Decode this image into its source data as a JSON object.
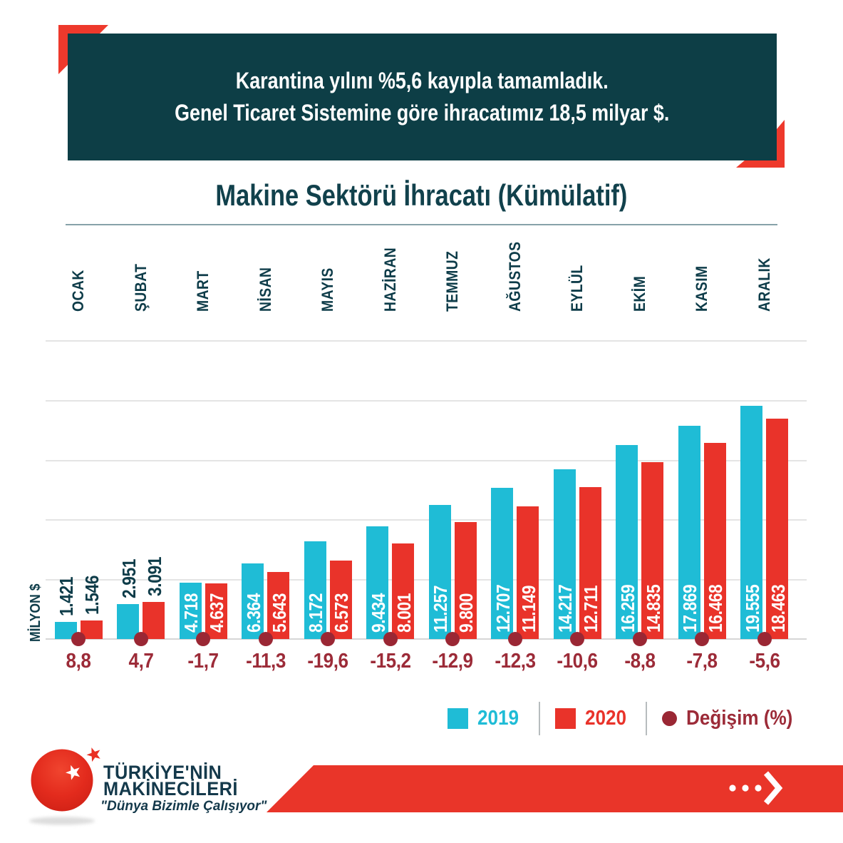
{
  "banner": {
    "line1": "Karantina yılını %5,6 kayıpla tamamladık.",
    "line2": "Genel Ticaret Sistemine göre ihracatımız 18,5 milyar $."
  },
  "chart_data": {
    "type": "bar",
    "title": "Makine Sektörü İhracatı (Kümülatif)",
    "ylabel": "MİLYON $",
    "categories": [
      "OCAK",
      "ŞUBAT",
      "MART",
      "NİSAN",
      "MAYIS",
      "HAZİRAN",
      "TEMMUZ",
      "AĞUSTOS",
      "EYLÜL",
      "EKİM",
      "KASIM",
      "ARALIK"
    ],
    "series": [
      {
        "name": "2019",
        "values": [
          1421,
          2951,
          4718,
          6364,
          8172,
          9434,
          11257,
          12707,
          14217,
          16259,
          17869,
          19555
        ]
      },
      {
        "name": "2020",
        "values": [
          1546,
          3091,
          4637,
          5643,
          6573,
          8001,
          9800,
          11149,
          12711,
          14835,
          16468,
          18463
        ]
      }
    ],
    "change_series": {
      "name": "Değişim (%)",
      "values": [
        "8,8",
        "4,7",
        "-1,7",
        "-11,3",
        "-19,6",
        "-15,2",
        "-12,9",
        "-12,3",
        "-10,6",
        "-8,8",
        "-7,8",
        "-5,6"
      ]
    },
    "ylim": [
      0,
      25000
    ],
    "grid_step": 5000,
    "grid": true,
    "legend_position": "bottom-right",
    "value_label_thousands_separator": "."
  },
  "legend": {
    "items": [
      {
        "label": "2019",
        "color": "#1fbcd6",
        "shape": "square"
      },
      {
        "label": "2020",
        "color": "#e9332a",
        "shape": "square"
      },
      {
        "label": "Değişim (%)",
        "color": "#9c2b38",
        "shape": "circle"
      }
    ]
  },
  "footer": {
    "brand_line1": "TÜRKİYE'NİN",
    "brand_line2": "MAKİNECİLERİ",
    "slogan": "\"Dünya Bizimle Çalışıyor\""
  },
  "colors": {
    "banner_bg": "#0d3e46",
    "accent_red": "#ee392c",
    "series_2019": "#1fbcd6",
    "series_2020": "#e9332a",
    "change_text": "#9c2b38",
    "change_dot": "#9a2734",
    "teal_text": "#0e3c49"
  }
}
